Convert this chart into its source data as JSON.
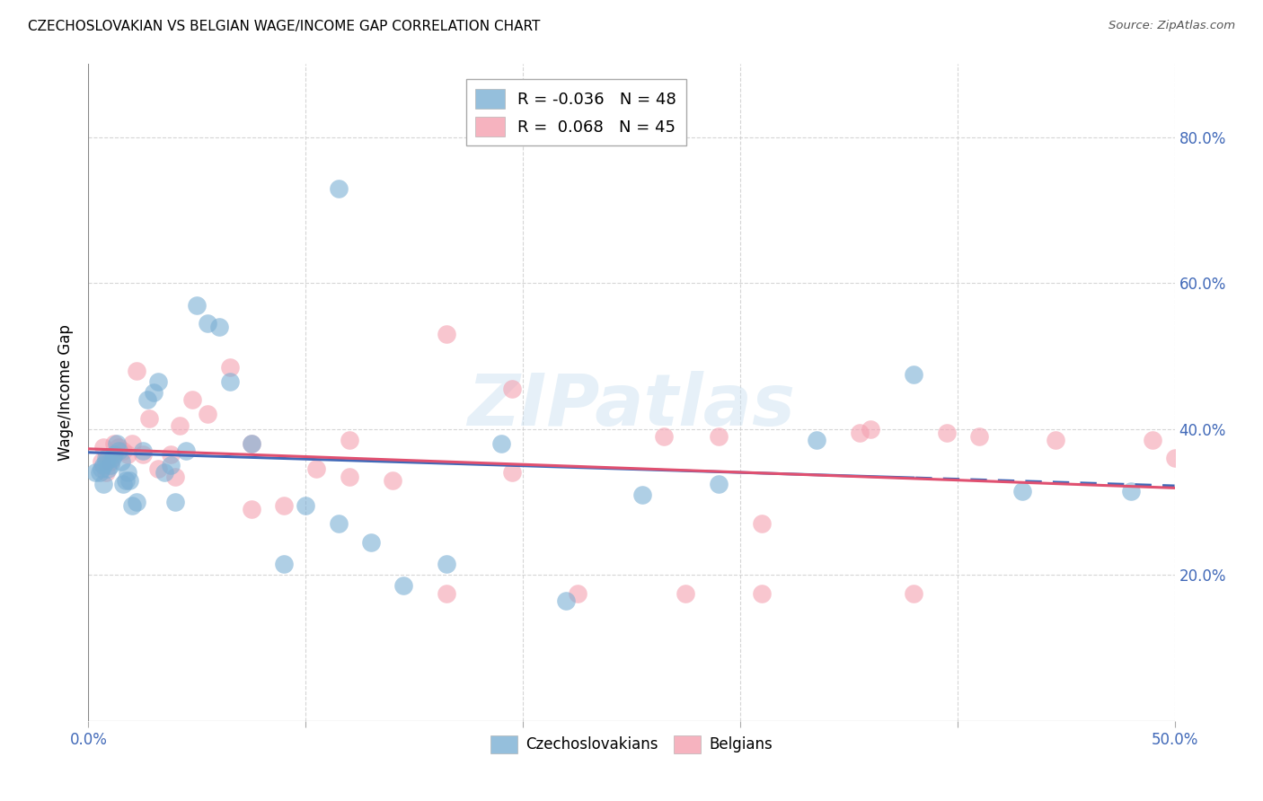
{
  "title": "CZECHOSLOVAKIAN VS BELGIAN WAGE/INCOME GAP CORRELATION CHART",
  "source": "Source: ZipAtlas.com",
  "ylabel": "Wage/Income Gap",
  "xlim": [
    0.0,
    0.5
  ],
  "ylim": [
    0.0,
    0.9
  ],
  "xtick_positions": [
    0.0,
    0.1,
    0.2,
    0.3,
    0.4,
    0.5
  ],
  "xtick_labels": [
    "0.0%",
    "",
    "",
    "",
    "",
    "50.0%"
  ],
  "ytick_positions": [
    0.2,
    0.4,
    0.6,
    0.8
  ],
  "ytick_labels": [
    "20.0%",
    "40.0%",
    "60.0%",
    "80.0%"
  ],
  "grid_color": "#cccccc",
  "background_color": "#ffffff",
  "watermark": "ZIPatlas",
  "czecho_color": "#7bafd4",
  "belgian_color": "#f4a0b0",
  "czecho_line_color": "#4169b8",
  "belgian_line_color": "#e05070",
  "czecho_dot_size": 220,
  "belgian_dot_size": 220,
  "legend_R_czecho": "-0.036",
  "legend_N_czecho": "48",
  "legend_R_belgian": " 0.068",
  "legend_N_belgian": "45",
  "czecho_line_split_x": 0.38,
  "czecho_x": [
    0.003,
    0.005,
    0.006,
    0.007,
    0.007,
    0.008,
    0.008,
    0.009,
    0.01,
    0.011,
    0.012,
    0.013,
    0.014,
    0.015,
    0.016,
    0.017,
    0.018,
    0.019,
    0.02,
    0.022,
    0.025,
    0.027,
    0.03,
    0.032,
    0.035,
    0.038,
    0.04,
    0.045,
    0.05,
    0.055,
    0.065,
    0.075,
    0.09,
    0.1,
    0.115,
    0.13,
    0.145,
    0.165,
    0.19,
    0.22,
    0.255,
    0.29,
    0.335,
    0.38,
    0.43,
    0.48,
    0.115,
    0.06
  ],
  "czecho_y": [
    0.34,
    0.34,
    0.345,
    0.325,
    0.35,
    0.355,
    0.36,
    0.345,
    0.35,
    0.36,
    0.365,
    0.38,
    0.37,
    0.355,
    0.325,
    0.33,
    0.34,
    0.33,
    0.295,
    0.3,
    0.37,
    0.44,
    0.45,
    0.465,
    0.34,
    0.35,
    0.3,
    0.37,
    0.57,
    0.545,
    0.465,
    0.38,
    0.215,
    0.295,
    0.27,
    0.245,
    0.185,
    0.215,
    0.38,
    0.165,
    0.31,
    0.325,
    0.385,
    0.475,
    0.315,
    0.315,
    0.73,
    0.54
  ],
  "belgian_x": [
    0.006,
    0.007,
    0.008,
    0.009,
    0.01,
    0.012,
    0.014,
    0.016,
    0.018,
    0.02,
    0.022,
    0.025,
    0.028,
    0.032,
    0.038,
    0.042,
    0.048,
    0.055,
    0.065,
    0.075,
    0.09,
    0.105,
    0.12,
    0.14,
    0.165,
    0.195,
    0.225,
    0.265,
    0.31,
    0.355,
    0.395,
    0.445,
    0.49,
    0.29,
    0.36,
    0.165,
    0.275,
    0.41,
    0.195,
    0.5,
    0.31,
    0.12,
    0.075,
    0.04,
    0.38
  ],
  "belgian_y": [
    0.355,
    0.375,
    0.34,
    0.36,
    0.355,
    0.38,
    0.375,
    0.37,
    0.365,
    0.38,
    0.48,
    0.365,
    0.415,
    0.345,
    0.365,
    0.405,
    0.44,
    0.42,
    0.485,
    0.38,
    0.295,
    0.345,
    0.335,
    0.33,
    0.53,
    0.455,
    0.175,
    0.39,
    0.175,
    0.395,
    0.395,
    0.385,
    0.385,
    0.39,
    0.4,
    0.175,
    0.175,
    0.39,
    0.34,
    0.36,
    0.27,
    0.385,
    0.29,
    0.335,
    0.175
  ]
}
